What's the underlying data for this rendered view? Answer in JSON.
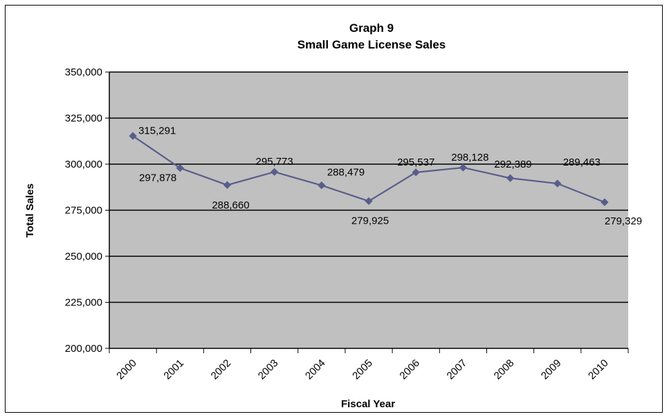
{
  "chart_data": {
    "type": "line",
    "title": "Graph 9",
    "subtitle": "Small Game License Sales",
    "xlabel": "Fiscal Year",
    "ylabel": "Total Sales",
    "categories": [
      "2000",
      "2001",
      "2002",
      "2003",
      "2004",
      "2005",
      "2006",
      "2007",
      "2008",
      "2009",
      "2010"
    ],
    "series": [
      {
        "values": [
          315291,
          297878,
          288660,
          295773,
          288479,
          279925,
          295537,
          298128,
          292389,
          289463,
          279329
        ],
        "value_labels": [
          "315,291",
          "297,878",
          "288,660",
          "295,773",
          "288,479",
          "279,925",
          "295,537",
          "298,128",
          "292,389",
          "289,463",
          "279,329"
        ]
      }
    ],
    "ylim": [
      200000,
      350000
    ],
    "yticks": [
      "200,000",
      "225,000",
      "250,000",
      "275,000",
      "300,000",
      "325,000",
      "350,000"
    ],
    "grid": true,
    "legend": "none",
    "colors": {
      "plot_background": "#c0c0c0",
      "line": "#585d8a",
      "grid": "#000000"
    }
  }
}
